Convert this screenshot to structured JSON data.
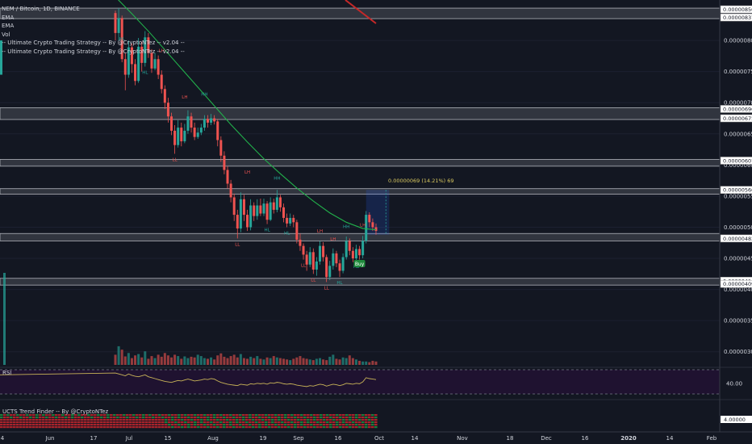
{
  "legend": {
    "symbol": "NEM / Bitcoin, 1D, BINANCE",
    "items": [
      "EMA",
      "EMA",
      "Vol",
      "-- Ultimate Crypto Trading Strategy -- By @CryptoNTez -- v2.04 --",
      "-- Ultimate Crypto Trading Strategy -- By @CryptoNTez -- v2.04 --"
    ]
  },
  "rsi_label": "RSI",
  "trend_label": "UCTS Trend Finder -- By @CryptoNTez",
  "measure_label": "0.00000069 (14.21%) 69",
  "buy_label": "Buy",
  "colors": {
    "background": "#131722",
    "up": "#26a69a",
    "down": "#ef5350",
    "ema": "#22b04b",
    "rsi_line": "#c9b458",
    "rsi_bg": "#1f1230",
    "zone": "#4a4e57"
  },
  "chart_data": {
    "type": "candlestick",
    "price_axis": {
      "range": [
        2.75e-06,
        8.65e-06
      ],
      "ticks": [
        "0.00000800",
        "0.00000750",
        "0.00000700",
        "0.00000650",
        "0.00000600",
        "0.00000550",
        "0.00000500",
        "0.00000450",
        "0.00000400",
        "0.00000350",
        "0.00000300"
      ],
      "highlighted": [
        "0.00000850",
        "0.00000837",
        "0.00000690",
        "0.00000675",
        "0.00000607",
        "0.00000560",
        "0.00000482",
        "0.00000414",
        "0.00000409"
      ]
    },
    "time_axis": {
      "labels": [
        "4",
        "Jun",
        "17",
        "Jul",
        "15",
        "Aug",
        "19",
        "Sep",
        "16",
        "Oct",
        "14",
        "Nov",
        "18",
        "Dec",
        "16",
        "2020",
        "14",
        "Feb"
      ]
    },
    "zones": [
      [
        8.5e-06,
        8.37e-06
      ],
      [
        6.9e-06,
        6.75e-06
      ],
      [
        6.07e-06,
        6e-06
      ],
      [
        5.6e-06,
        5.55e-06
      ],
      [
        4.88e-06,
        4.8e-06
      ],
      [
        4.16e-06,
        4.09e-06
      ]
    ],
    "candles": [
      [
        95,
        8.44e-06,
        8.12e-06,
        8.48e-06,
        8e-06
      ],
      [
        96,
        8.12e-06,
        8.36e-06,
        8.52e-06,
        8e-06
      ],
      [
        97,
        8.36e-06,
        7.7e-06,
        8.4e-06,
        7.65e-06
      ],
      [
        98,
        7.7e-06,
        7.45e-06,
        7.8e-06,
        7.2e-06
      ],
      [
        99,
        7.45e-06,
        7.89e-06,
        8e-06,
        7.4e-06
      ],
      [
        100,
        7.89e-06,
        7.62e-06,
        7.95e-06,
        7.48e-06
      ],
      [
        101,
        7.62e-06,
        7.35e-06,
        7.7e-06,
        7.28e-06
      ],
      [
        102,
        7.35e-06,
        7.9e-06,
        8.04e-06,
        7.32e-06
      ],
      [
        103,
        7.9e-06,
        7.64e-06,
        7.98e-06,
        7.5e-06
      ],
      [
        104,
        7.64e-06,
        8.05e-06,
        8.15e-06,
        7.58e-06
      ],
      [
        105,
        8.05e-06,
        7.8e-06,
        8.12e-06,
        7.72e-06
      ],
      [
        106,
        7.8e-06,
        7.55e-06,
        7.86e-06,
        7.48e-06
      ],
      [
        107,
        7.55e-06,
        7.7e-06,
        7.8e-06,
        7.52e-06
      ],
      [
        108,
        7.7e-06,
        7.45e-06,
        7.76e-06,
        7.38e-06
      ],
      [
        109,
        7.45e-06,
        7.22e-06,
        7.52e-06,
        7.15e-06
      ],
      [
        110,
        7.22e-06,
        7e-06,
        7.28e-06,
        6.9e-06
      ],
      [
        111,
        7e-06,
        6.78e-06,
        7.08e-06,
        6.68e-06
      ],
      [
        112,
        6.78e-06,
        6.55e-06,
        6.84e-06,
        6.48e-06
      ],
      [
        113,
        6.55e-06,
        6.32e-06,
        6.64e-06,
        6.18e-06
      ],
      [
        114,
        6.32e-06,
        6.6e-06,
        6.72e-06,
        6.28e-06
      ],
      [
        115,
        6.6e-06,
        6.38e-06,
        6.68e-06,
        6.3e-06
      ],
      [
        116,
        6.38e-06,
        6.55e-06,
        6.66e-06,
        6.35e-06
      ],
      [
        117,
        6.55e-06,
        6.78e-06,
        6.88e-06,
        6.5e-06
      ],
      [
        118,
        6.78e-06,
        6.6e-06,
        6.84e-06,
        6.52e-06
      ],
      [
        119,
        6.6e-06,
        6.45e-06,
        6.68e-06,
        6.4e-06
      ],
      [
        120,
        6.45e-06,
        6.52e-06,
        6.6e-06,
        6.42e-06
      ],
      [
        121,
        6.52e-06,
        6.6e-06,
        6.66e-06,
        6.48e-06
      ],
      [
        122,
        6.6e-06,
        6.74e-06,
        6.8e-06,
        6.55e-06
      ],
      [
        123,
        6.74e-06,
        6.68e-06,
        6.8e-06,
        6.6e-06
      ],
      [
        124,
        6.68e-06,
        6.75e-06,
        6.82e-06,
        6.64e-06
      ],
      [
        125,
        6.75e-06,
        6.7e-06,
        6.8e-06,
        6.65e-06
      ],
      [
        126,
        6.7e-06,
        6.4e-06,
        6.74e-06,
        6.3e-06
      ],
      [
        127,
        6.4e-06,
        6.15e-06,
        6.46e-06,
        6.05e-06
      ],
      [
        128,
        6.15e-06,
        5.92e-06,
        6.22e-06,
        5.85e-06
      ],
      [
        129,
        5.92e-06,
        5.7e-06,
        5.98e-06,
        5.62e-06
      ],
      [
        130,
        5.7e-06,
        5.48e-06,
        5.76e-06,
        5.4e-06
      ],
      [
        131,
        5.48e-06,
        5.2e-06,
        5.54e-06,
        5.1e-06
      ],
      [
        132,
        5.2e-06,
        4.98e-06,
        5.28e-06,
        4.82e-06
      ],
      [
        133,
        4.98e-06,
        5.45e-06,
        5.56e-06,
        4.92e-06
      ],
      [
        134,
        5.45e-06,
        5.2e-06,
        5.52e-06,
        5.1e-06
      ],
      [
        135,
        5.2e-06,
        5e-06,
        5.28e-06,
        4.94e-06
      ],
      [
        136,
        5e-06,
        5.35e-06,
        5.45e-06,
        4.95e-06
      ],
      [
        137,
        5.35e-06,
        5.18e-06,
        5.4e-06,
        5.1e-06
      ],
      [
        138,
        5.18e-06,
        5.35e-06,
        5.45e-06,
        5.12e-06
      ],
      [
        139,
        5.35e-06,
        5.22e-06,
        5.46e-06,
        5.18e-06
      ],
      [
        140,
        5.22e-06,
        5.38e-06,
        5.46e-06,
        5.18e-06
      ],
      [
        141,
        5.38e-06,
        5.12e-06,
        5.42e-06,
        5.05e-06
      ],
      [
        142,
        5.12e-06,
        5.4e-06,
        5.48e-06,
        5.1e-06
      ],
      [
        143,
        5.4e-06,
        5.28e-06,
        5.46e-06,
        5.22e-06
      ],
      [
        144,
        5.28e-06,
        5.48e-06,
        5.6e-06,
        5.24e-06
      ],
      [
        145,
        5.48e-06,
        5.32e-06,
        5.52e-06,
        5.25e-06
      ],
      [
        146,
        5.32e-06,
        5.15e-06,
        5.38e-06,
        5.08e-06
      ],
      [
        147,
        5.15e-06,
        5.06e-06,
        5.22e-06,
        5e-06
      ],
      [
        148,
        5.06e-06,
        5.15e-06,
        5.22e-06,
        5.02e-06
      ],
      [
        149,
        5.15e-06,
        5.08e-06,
        5.2e-06,
        5e-06
      ],
      [
        150,
        5.08e-06,
        4.8e-06,
        5.12e-06,
        4.74e-06
      ],
      [
        151,
        4.8e-06,
        4.7e-06,
        4.9e-06,
        4.62e-06
      ],
      [
        152,
        4.7e-06,
        4.56e-06,
        4.74e-06,
        4.48e-06
      ],
      [
        153,
        4.56e-06,
        4.4e-06,
        4.62e-06,
        4.3e-06
      ],
      [
        154,
        4.4e-06,
        4.6e-06,
        4.68e-06,
        4.36e-06
      ],
      [
        155,
        4.6e-06,
        4.32e-06,
        4.66e-06,
        4.25e-06
      ],
      [
        156,
        4.32e-06,
        4.45e-06,
        4.52e-06,
        4.22e-06
      ],
      [
        157,
        4.45e-06,
        4.7e-06,
        4.78e-06,
        4.4e-06
      ],
      [
        158,
        4.7e-06,
        4.52e-06,
        4.76e-06,
        4.45e-06
      ],
      [
        159,
        4.52e-06,
        4.2e-06,
        4.56e-06,
        4.12e-06
      ],
      [
        160,
        4.2e-06,
        4.38e-06,
        4.46e-06,
        4.15e-06
      ],
      [
        161,
        4.38e-06,
        4.58e-06,
        4.66e-06,
        4.32e-06
      ],
      [
        162,
        4.58e-06,
        4.42e-06,
        4.62e-06,
        4.36e-06
      ],
      [
        163,
        4.42e-06,
        4.3e-06,
        4.48e-06,
        4.2e-06
      ],
      [
        164,
        4.3e-06,
        4.52e-06,
        4.58e-06,
        4.26e-06
      ],
      [
        165,
        4.52e-06,
        4.78e-06,
        4.85e-06,
        4.48e-06
      ],
      [
        166,
        4.78e-06,
        4.62e-06,
        4.82e-06,
        4.55e-06
      ],
      [
        167,
        4.62e-06,
        4.5e-06,
        4.68e-06,
        4.44e-06
      ],
      [
        168,
        4.5e-06,
        4.65e-06,
        4.72e-06,
        4.46e-06
      ],
      [
        169,
        4.65e-06,
        4.55e-06,
        4.7e-06,
        4.48e-06
      ],
      [
        170,
        4.55e-06,
        4.78e-06,
        4.86e-06,
        4.5e-06
      ],
      [
        171,
        4.78e-06,
        5.2e-06,
        5.26e-06,
        4.74e-06
      ],
      [
        172,
        5.2e-06,
        5.08e-06,
        5.24e-06,
        5e-06
      ],
      [
        173,
        5.08e-06,
        5e-06,
        5.14e-06,
        4.94e-06
      ],
      [
        174,
        5e-06,
        4.94e-06,
        5.06e-06,
        4.88e-06
      ]
    ],
    "ema": [
      [
        95,
        8.7e-06
      ],
      [
        100,
        8.43e-06
      ],
      [
        105,
        8.15e-06
      ],
      [
        110,
        7.85e-06
      ],
      [
        115,
        7.55e-06
      ],
      [
        120,
        7.25e-06
      ],
      [
        125,
        6.95e-06
      ],
      [
        130,
        6.65e-06
      ],
      [
        135,
        6.37e-06
      ],
      [
        140,
        6.1e-06
      ],
      [
        145,
        5.86e-06
      ],
      [
        150,
        5.63e-06
      ],
      [
        155,
        5.42e-06
      ],
      [
        160,
        5.23e-06
      ],
      [
        165,
        5.08e-06
      ],
      [
        170,
        4.98e-06
      ],
      [
        174,
        4.96e-06
      ]
    ],
    "volume": [
      0.3,
      0.55,
      0.45,
      0.25,
      0.35,
      0.2,
      0.28,
      0.32,
      0.22,
      0.4,
      0.18,
      0.26,
      0.2,
      0.3,
      0.24,
      0.35,
      0.28,
      0.22,
      0.3,
      0.26,
      0.18,
      0.25,
      0.2,
      0.24,
      0.22,
      0.3,
      0.26,
      0.2,
      0.18,
      0.22,
      0.16,
      0.28,
      0.34,
      0.24,
      0.2,
      0.26,
      0.3,
      0.22,
      0.32,
      0.2,
      0.18,
      0.24,
      0.2,
      0.26,
      0.18,
      0.16,
      0.22,
      0.2,
      0.26,
      0.22,
      0.2,
      0.18,
      0.16,
      0.14,
      0.18,
      0.22,
      0.26,
      0.2,
      0.18,
      0.16,
      0.14,
      0.18,
      0.2,
      0.16,
      0.14,
      0.24,
      0.3,
      0.18,
      0.16,
      0.22,
      0.2,
      0.28,
      0.2,
      0.16,
      0.12,
      0.1,
      0.1,
      0.08,
      0.12,
      0.1
    ],
    "rsi": {
      "ticks": [
        "40.00"
      ],
      "values": [
        62,
        60,
        58,
        56,
        60,
        57,
        55,
        54,
        56,
        58,
        54,
        52,
        50,
        48,
        46,
        44,
        43,
        42,
        44,
        46,
        45,
        47,
        49,
        47,
        45,
        46,
        47,
        49,
        48,
        50,
        49,
        45,
        42,
        40,
        38,
        37,
        36,
        35,
        38,
        37,
        36,
        39,
        38,
        40,
        39,
        40,
        38,
        41,
        40,
        42,
        41,
        39,
        38,
        39,
        38,
        36,
        35,
        34,
        33,
        35,
        34,
        36,
        38,
        37,
        34,
        36,
        38,
        37,
        35,
        37,
        40,
        39,
        38,
        40,
        39,
        43,
        52,
        50,
        49,
        48
      ]
    },
    "trend_axis": {
      "ticks": [
        "4.00000"
      ]
    },
    "markers": [
      {
        "t": 97,
        "label": "HL",
        "price": 8.12e-06,
        "pos": "below"
      },
      {
        "t": 104,
        "label": "HL",
        "price": 7.58e-06,
        "pos": "below"
      },
      {
        "t": 109,
        "label": "LH",
        "price": 7.75e-06,
        "pos": "above"
      },
      {
        "t": 113,
        "label": "LL",
        "price": 6.18e-06,
        "pos": "below"
      },
      {
        "t": 116,
        "label": "LH",
        "price": 7e-06,
        "pos": "above"
      },
      {
        "t": 122,
        "label": "HH",
        "price": 7.05e-06,
        "pos": "above"
      },
      {
        "t": 132,
        "label": "LL",
        "price": 4.82e-06,
        "pos": "below"
      },
      {
        "t": 135,
        "label": "LH",
        "price": 5.8e-06,
        "pos": "above"
      },
      {
        "t": 141,
        "label": "HL",
        "price": 5.05e-06,
        "pos": "below"
      },
      {
        "t": 144,
        "label": "HH",
        "price": 5.7e-06,
        "pos": "above"
      },
      {
        "t": 147,
        "label": "HL",
        "price": 5e-06,
        "pos": "below"
      },
      {
        "t": 152,
        "label": "LL",
        "price": 4.48e-06,
        "pos": "below"
      },
      {
        "t": 155,
        "label": "LL",
        "price": 4.25e-06,
        "pos": "below"
      },
      {
        "t": 157,
        "label": "LH",
        "price": 4.85e-06,
        "pos": "above"
      },
      {
        "t": 159,
        "label": "LL",
        "price": 4.12e-06,
        "pos": "below"
      },
      {
        "t": 161,
        "label": "LH",
        "price": 4.72e-06,
        "pos": "above"
      },
      {
        "t": 163,
        "label": "HL",
        "price": 4.2e-06,
        "pos": "below"
      },
      {
        "t": 165,
        "label": "HH",
        "price": 4.92e-06,
        "pos": "above"
      },
      {
        "t": 168,
        "label": "HL",
        "price": 4.46e-06,
        "pos": "below"
      },
      {
        "t": 170,
        "label": "LH",
        "price": 4.95e-06,
        "pos": "above"
      }
    ]
  }
}
